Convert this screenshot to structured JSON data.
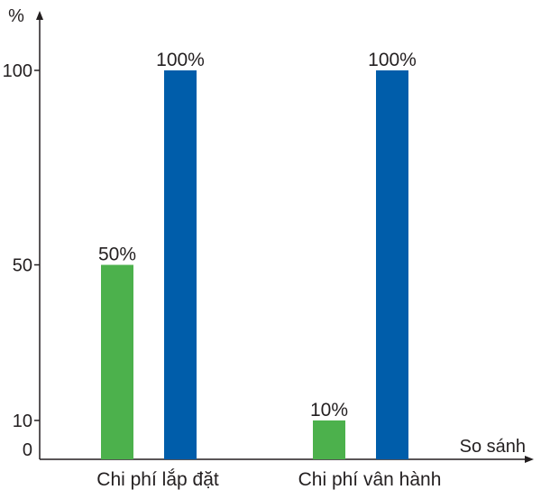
{
  "chart_data": {
    "type": "bar",
    "categories": [
      "Chi phí lắp đặt",
      "Chi phí vân hành"
    ],
    "series": [
      {
        "values": [
          50,
          10
        ],
        "color": "#4cb14c"
      },
      {
        "values": [
          100,
          100
        ],
        "color": "#005daa"
      }
    ],
    "data_labels": [
      [
        "50%",
        "10%"
      ],
      [
        "100%",
        "100%"
      ]
    ],
    "ylabel": "%",
    "xlabel": "So sánh",
    "yticks": [
      {
        "value": 0,
        "label": "0"
      },
      {
        "value": 10,
        "label": "10"
      },
      {
        "value": 50,
        "label": "50"
      },
      {
        "value": 100,
        "label": "100"
      }
    ],
    "ylim": [
      0,
      110
    ],
    "grid": false,
    "axis_color": "#231f20"
  }
}
